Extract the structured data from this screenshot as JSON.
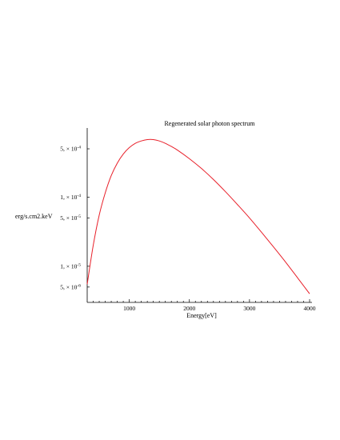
{
  "chart_data": {
    "type": "line",
    "title": "Regenerated solar photon spectrum",
    "xlabel": "Energy[eV]",
    "ylabel": "erg/s.cm2.keV",
    "xlim": [
      300,
      4000
    ],
    "ylim": [
      3e-06,
      0.001
    ],
    "yscale": "log",
    "grid": false,
    "x_ticks": [
      {
        "value": 1000,
        "label": "1000"
      },
      {
        "value": 2000,
        "label": "2000"
      },
      {
        "value": 3000,
        "label": "3000"
      },
      {
        "value": 4000,
        "label": "4000"
      }
    ],
    "y_ticks": [
      {
        "value": 0.0005,
        "label": "5, × 10",
        "exp": "-4"
      },
      {
        "value": 0.0001,
        "label": "1, × 10",
        "exp": "-4"
      },
      {
        "value": 5e-05,
        "label": "5, × 10",
        "exp": "-5"
      },
      {
        "value": 1e-05,
        "label": "1, × 10",
        "exp": "-5"
      },
      {
        "value": 5e-06,
        "label": "5, × 10",
        "exp": "-6"
      }
    ],
    "series": [
      {
        "color": "#e8202a",
        "x": [
          300,
          400,
          500,
          600,
          700,
          800,
          900,
          1000,
          1100,
          1200,
          1300,
          1400,
          1500,
          1600,
          1700,
          1800,
          2000,
          2200,
          2400,
          2600,
          2800,
          3000,
          3200,
          3400,
          3600,
          3800,
          4000
        ],
        "y": [
          5.5e-06,
          2e-05,
          5.5e-05,
          0.000115,
          0.000205,
          0.00031,
          0.00042,
          0.00052,
          0.0006,
          0.00065,
          0.00068,
          0.00068,
          0.00065,
          0.0006,
          0.00054,
          0.00048,
          0.00036,
          0.00026,
          0.00018,
          0.00012,
          7.8e-05,
          5e-05,
          3.1e-05,
          1.9e-05,
          1.15e-05,
          6.8e-06,
          4e-06
        ]
      }
    ]
  }
}
